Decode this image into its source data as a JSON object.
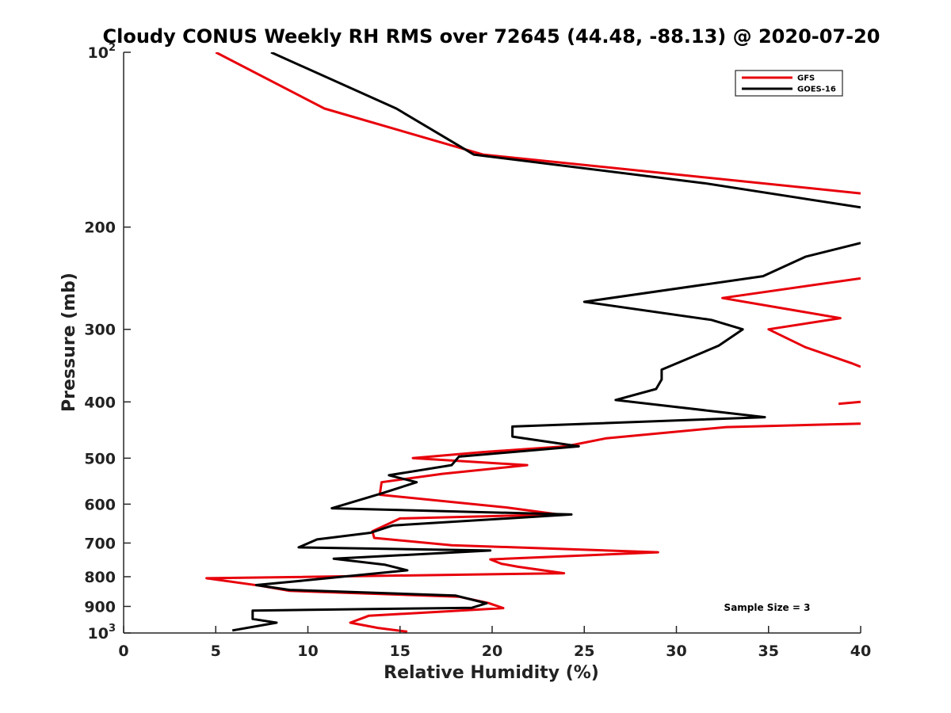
{
  "chart_data": {
    "type": "line",
    "title": "Cloudy CONUS Weekly RH RMS over 72645 (44.48, -88.13) @ 2020-07-20",
    "xlabel": "Relative Humidity (%)",
    "ylabel": "Pressure (mb)",
    "xlim": [
      0,
      40
    ],
    "ylim": [
      100,
      1000
    ],
    "y_scale": "log",
    "y_reversed": true,
    "x_ticks": [
      0,
      5,
      10,
      15,
      20,
      25,
      30,
      35,
      40
    ],
    "x_tick_labels": [
      "0",
      "5",
      "10",
      "15",
      "20",
      "25",
      "30",
      "35",
      "40"
    ],
    "y_ticks": [
      100,
      200,
      300,
      400,
      500,
      600,
      700,
      800,
      900,
      1000
    ],
    "y_tick_labels": [
      {
        "base": "10",
        "sup": "2"
      },
      {
        "base": "200",
        "sup": ""
      },
      {
        "base": "300",
        "sup": ""
      },
      {
        "base": "400",
        "sup": ""
      },
      {
        "base": "500",
        "sup": ""
      },
      {
        "base": "600",
        "sup": ""
      },
      {
        "base": "700",
        "sup": ""
      },
      {
        "base": "800",
        "sup": ""
      },
      {
        "base": "900",
        "sup": ""
      },
      {
        "base": "10",
        "sup": "3"
      }
    ],
    "grid": false,
    "legend_position": "top-right",
    "annotation": "Sample Size = 3",
    "series": [
      {
        "name": "GFS",
        "color": "#e8000b",
        "segments": [
          [
            [
              5.0,
              100
            ],
            [
              10.9,
              125
            ],
            [
              19.5,
              150
            ],
            [
              40.0,
              175
            ]
          ],
          [
            [
              40.0,
              245
            ],
            [
              32.5,
              265
            ],
            [
              38.9,
              287
            ],
            [
              35.0,
              300
            ],
            [
              37.0,
              322
            ],
            [
              39.5,
              343
            ],
            [
              40.0,
              348
            ]
          ],
          [
            [
              38.8,
              403
            ],
            [
              40.0,
              400
            ]
          ],
          [
            [
              40.0,
              436
            ],
            [
              32.7,
              442
            ],
            [
              26.2,
              462
            ],
            [
              24.0,
              477
            ],
            [
              19.5,
              488
            ],
            [
              15.7,
              500
            ],
            [
              21.9,
              514
            ],
            [
              17.3,
              532
            ],
            [
              14.0,
              550
            ],
            [
              13.9,
              578
            ],
            [
              20.8,
              608
            ],
            [
              23.6,
              625
            ],
            [
              15.0,
              635
            ],
            [
              14.5,
              646
            ],
            [
              13.5,
              668
            ],
            [
              13.6,
              686
            ],
            [
              17.8,
              706
            ],
            [
              29.0,
              726
            ],
            [
              19.9,
              747
            ],
            [
              20.5,
              760
            ],
            [
              21.4,
              769
            ],
            [
              23.9,
              789
            ],
            [
              4.5,
              805
            ],
            [
              7.4,
              829
            ],
            [
              9.0,
              846
            ],
            [
              18.2,
              866
            ],
            [
              19.8,
              888
            ],
            [
              20.6,
              906
            ],
            [
              13.3,
              934
            ],
            [
              12.3,
              960
            ],
            [
              13.8,
              980
            ],
            [
              15.4,
              995
            ]
          ]
        ]
      },
      {
        "name": "GOES-16",
        "color": "#000000",
        "segments": [
          [
            [
              8.0,
              100
            ],
            [
              14.8,
              125
            ],
            [
              19.0,
              150
            ],
            [
              31.5,
              168
            ],
            [
              40.0,
              185
            ]
          ],
          [
            [
              40.0,
              213
            ],
            [
              37.0,
              225
            ],
            [
              34.7,
              243
            ],
            [
              25.0,
              269
            ],
            [
              31.9,
              289
            ],
            [
              33.6,
              300
            ],
            [
              32.3,
              320
            ],
            [
              29.2,
              352
            ],
            [
              29.2,
              366
            ],
            [
              28.9,
              380
            ],
            [
              26.7,
              397
            ],
            [
              34.8,
              425
            ],
            [
              21.1,
              441
            ],
            [
              21.1,
              459
            ],
            [
              24.7,
              477
            ],
            [
              18.2,
              497
            ],
            [
              17.8,
              514
            ],
            [
              14.4,
              535
            ],
            [
              15.9,
              550
            ],
            [
              14.0,
              575
            ],
            [
              11.3,
              610
            ],
            [
              24.3,
              625
            ],
            [
              14.6,
              653
            ],
            [
              13.4,
              672
            ],
            [
              10.5,
              690
            ],
            [
              9.5,
              712
            ],
            [
              19.9,
              721
            ],
            [
              11.4,
              745
            ],
            [
              14.2,
              763
            ],
            [
              15.4,
              780
            ],
            [
              9.3,
              815
            ],
            [
              7.2,
              827
            ],
            [
              9.0,
              843
            ],
            [
              18.0,
              862
            ],
            [
              19.7,
              889
            ],
            [
              18.9,
              905
            ],
            [
              7.0,
              915
            ],
            [
              7.0,
              946
            ],
            [
              8.3,
              960
            ],
            [
              5.9,
              990
            ]
          ]
        ]
      }
    ]
  }
}
